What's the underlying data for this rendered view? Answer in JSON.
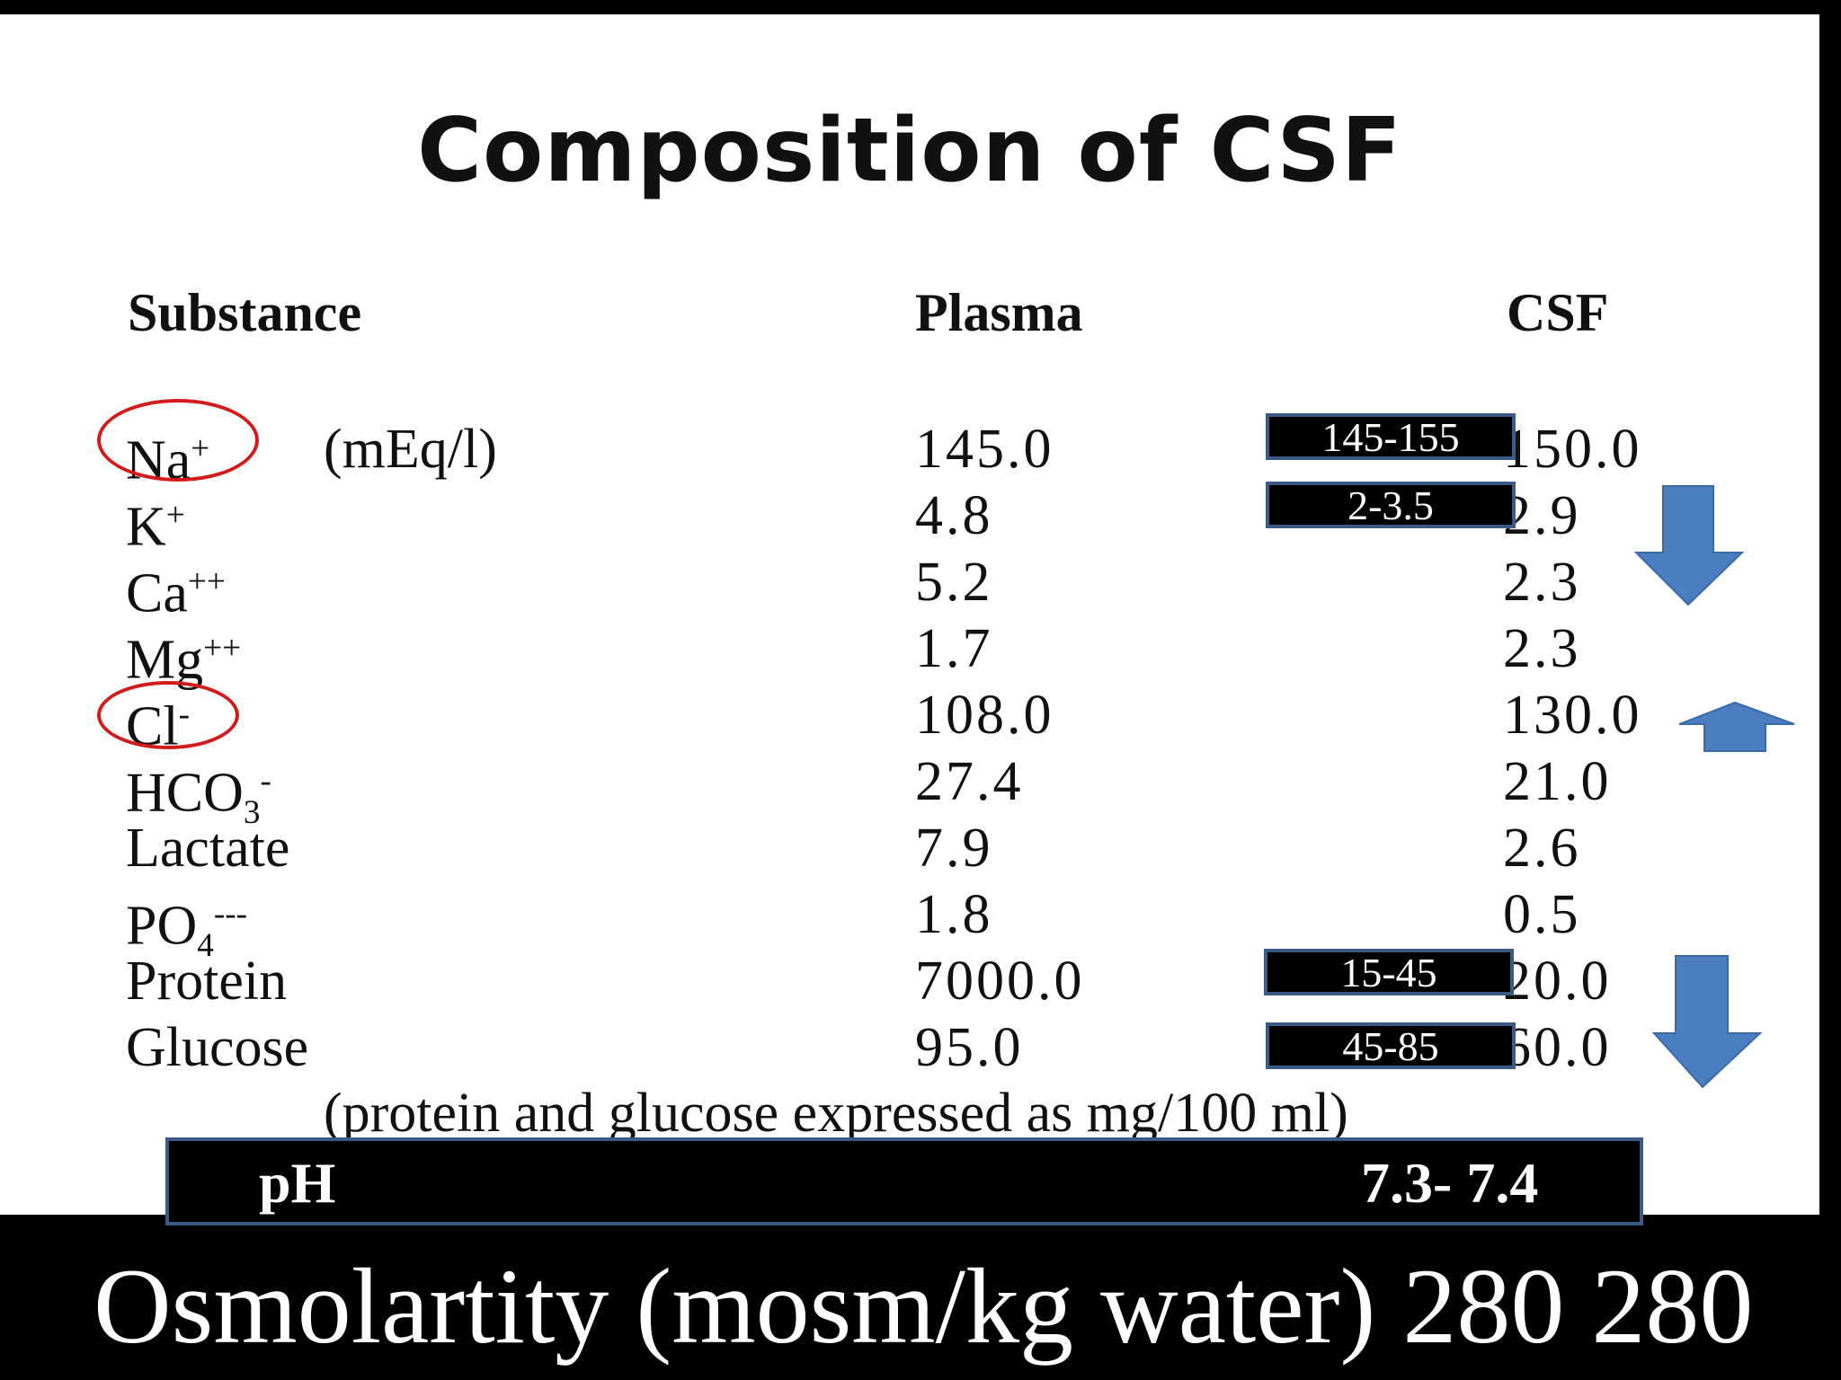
{
  "title": "Composition of CSF",
  "headers": {
    "substance": "Substance",
    "plasma": "Plasma",
    "csf": "CSF"
  },
  "rows": [
    {
      "base": "Na",
      "sup": "+",
      "sub": "",
      "unit": "(mEq/l)",
      "plasma": "145.0",
      "csf": "150.0"
    },
    {
      "base": "K",
      "sup": "+",
      "sub": "",
      "unit": "",
      "plasma": "4.8",
      "csf": "2.9"
    },
    {
      "base": "Ca",
      "sup": "++",
      "sub": "",
      "unit": "",
      "plasma": "5.2",
      "csf": "2.3"
    },
    {
      "base": "Mg",
      "sup": "++",
      "sub": "",
      "unit": "",
      "plasma": "1.7",
      "csf": "2.3"
    },
    {
      "base": "Cl",
      "sup": "-",
      "sub": "",
      "unit": "",
      "plasma": "108.0",
      "csf": "130.0"
    },
    {
      "base": "HCO",
      "sup": "-",
      "sub": "3",
      "unit": "",
      "plasma": "27.4",
      "csf": "21.0"
    },
    {
      "base": "Lactate",
      "sup": "",
      "sub": "",
      "unit": "",
      "plasma": "7.9",
      "csf": "2.6"
    },
    {
      "base": "PO",
      "sup": "---",
      "sub": "4",
      "unit": "",
      "plasma": "1.8",
      "csf": "0.5"
    },
    {
      "base": "Protein",
      "sup": "",
      "sub": "",
      "unit": "",
      "plasma": "7000.0",
      "csf": "20.0"
    },
    {
      "base": "Glucose",
      "sup": "",
      "sub": "",
      "unit": "",
      "plasma": "95.0",
      "csf": "60.0"
    }
  ],
  "note": "(protein and glucose expressed as mg/100 ml)",
  "ranges": {
    "na": "145-155",
    "k": "2-3.5",
    "protein": "15-45",
    "glucose": "45-85"
  },
  "ph": {
    "label": "pH",
    "value": "7.3- 7.4"
  },
  "osmolarity": "Osmolartity (mosm/kg water) 280  280",
  "colors": {
    "arrow": "#4a7ec0",
    "circle": "#d21c1c",
    "box_border": "#3b5a86"
  }
}
